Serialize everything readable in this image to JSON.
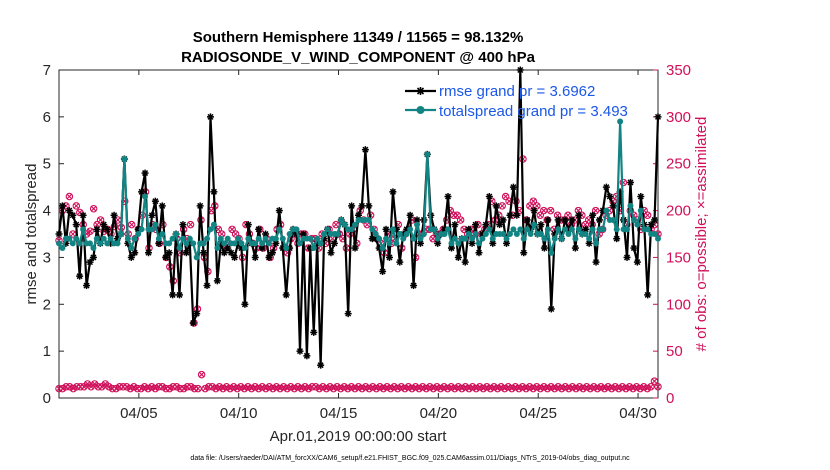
{
  "chart_data": {
    "type": "line",
    "title": "Southern Hemisphere 11349 / 11565 = 98.132%",
    "subtitle": "RADIOSONDE_V_WIND_COMPONENT @ 400 hPa",
    "xlabel": "Apr.01,2019 00:00:00 start",
    "ylabel": "rmse and totalspread",
    "ylabel_right": "# of obs: o=possible; ×=assimilated",
    "xlim": [
      1.0,
      31.0
    ],
    "ylim": [
      0,
      7
    ],
    "ylim_right": [
      0,
      350
    ],
    "x_ticks": [
      5,
      10,
      15,
      20,
      25,
      30
    ],
    "x_tick_labels": [
      "04/05",
      "04/10",
      "04/15",
      "04/20",
      "04/25",
      "04/30"
    ],
    "y_ticks": [
      0,
      1,
      2,
      3,
      4,
      5,
      6,
      7
    ],
    "y_ticks_right": [
      0,
      50,
      100,
      150,
      200,
      250,
      300,
      350
    ],
    "footnote": "data file: /Users/raeder/DAI/ATM_forcXX/CAM6_setup/f.e21.FHIST_BGC.f09_025.CAM6assim.011/Diags_NTrS_2019-04/obs_diag_output.nc",
    "colors": {
      "rmse": "#000000",
      "spread": "#138484",
      "obs": "#d0105a",
      "legend_text": "#1b57e8"
    },
    "series": [
      {
        "name": "rmse grand pr = 3.6962",
        "axis": "left",
        "values": [
          3.5,
          4.1,
          3.3,
          4.0,
          3.9,
          3.7,
          2.6,
          3.9,
          2.4,
          2.9,
          3.0,
          3.6,
          3.3,
          3.7,
          3.6,
          3.3,
          3.9,
          3.4,
          3.5,
          5.1,
          3.3,
          3.0,
          3.1,
          3.6,
          4.4,
          4.8,
          3.1,
          3.9,
          4.2,
          3.3,
          4.1,
          3.0,
          3.1,
          2.2,
          3.5,
          2.2,
          3.7,
          3.1,
          3.3,
          1.6,
          1.8,
          4.1,
          3.1,
          2.4,
          6.0,
          4.4,
          2.5,
          3.3,
          3.1,
          3.2,
          3.1,
          3.0,
          3.3,
          3.2,
          2.0,
          3.7,
          3.3,
          3.0,
          3.6,
          3.2,
          3.5,
          3.0,
          3.1,
          3.3,
          4.0,
          3.2,
          2.2,
          3.2,
          3.6,
          3.5,
          1.0,
          3.5,
          0.9,
          3.2,
          1.4,
          3.3,
          0.7,
          3.4,
          3.6,
          3.1,
          3.3,
          3.5,
          3.8,
          3.7,
          1.8,
          4.1,
          3.2,
          3.9,
          4.1,
          5.3,
          4.1,
          3.4,
          3.4,
          3.2,
          2.7,
          3.6,
          3.0,
          4.4,
          3.6,
          2.9,
          3.5,
          3.6,
          3.9,
          2.4,
          3.8,
          3.3,
          3.8,
          5.2,
          3.9,
          3.6,
          3.3,
          3.5,
          3.6,
          4.3,
          3.2,
          3.7,
          3.0,
          3.4,
          2.9,
          3.6,
          3.3,
          3.7,
          3.1,
          3.5,
          3.7,
          4.3,
          3.3,
          4.1,
          3.7,
          3.8,
          3.3,
          3.9,
          4.5,
          3.9,
          7.0,
          3.1,
          3.8,
          3.6,
          4.0,
          3.5,
          3.7,
          3.2,
          3.8,
          1.9,
          3.5,
          3.8,
          3.4,
          3.8,
          3.6,
          3.8,
          3.2,
          3.9,
          3.5,
          3.6,
          3.3,
          3.9,
          2.9,
          3.8,
          4.0,
          4.5,
          4.3,
          4.1,
          3.4,
          4.4,
          3.8,
          3.0,
          4.6,
          3.2,
          2.9,
          4.3,
          3.7,
          2.2,
          3.7,
          3.8,
          6.0
        ]
      },
      {
        "name": "totalspread grand pr = 3.493",
        "axis": "left",
        "values": [
          3.3,
          3.2,
          3.4,
          3.4,
          3.3,
          3.4,
          3.3,
          3.6,
          3.3,
          3.3,
          3.2,
          3.4,
          3.3,
          3.4,
          3.3,
          3.4,
          3.3,
          3.3,
          3.5,
          5.1,
          3.4,
          3.2,
          3.4,
          3.5,
          3.6,
          4.3,
          3.6,
          3.6,
          3.7,
          3.4,
          3.5,
          3.3,
          3.3,
          3.4,
          3.5,
          3.2,
          3.4,
          3.3,
          3.4,
          3.3,
          3.0,
          3.3,
          3.3,
          3.4,
          3.6,
          3.7,
          3.2,
          3.4,
          3.3,
          3.4,
          3.3,
          3.3,
          3.4,
          3.3,
          3.2,
          3.4,
          3.3,
          3.3,
          3.4,
          3.3,
          3.4,
          3.3,
          3.4,
          3.4,
          3.6,
          3.4,
          3.2,
          3.5,
          3.6,
          3.6,
          3.3,
          3.4,
          3.4,
          3.4,
          3.2,
          3.4,
          3.3,
          3.5,
          3.6,
          3.5,
          3.5,
          3.5,
          3.8,
          3.7,
          3.6,
          3.6,
          3.7,
          3.8,
          3.8,
          3.8,
          3.8,
          3.6,
          3.5,
          3.4,
          3.2,
          3.4,
          3.3,
          3.6,
          3.3,
          3.5,
          3.4,
          3.5,
          3.6,
          3.4,
          3.7,
          3.4,
          3.5,
          5.2,
          3.6,
          3.6,
          3.4,
          3.5,
          3.5,
          3.6,
          3.3,
          3.4,
          3.3,
          3.4,
          3.4,
          3.5,
          3.4,
          3.5,
          3.3,
          3.4,
          3.5,
          3.6,
          3.4,
          3.5,
          3.5,
          3.5,
          3.4,
          3.5,
          3.6,
          3.5,
          3.6,
          3.4,
          3.6,
          3.5,
          3.7,
          3.5,
          3.5,
          3.4,
          3.6,
          3.1,
          3.4,
          3.6,
          3.4,
          3.6,
          3.5,
          3.6,
          3.4,
          3.6,
          3.5,
          3.5,
          3.4,
          3.6,
          3.3,
          3.6,
          3.6,
          4.0,
          3.8,
          3.8,
          3.6,
          5.9,
          3.6,
          3.6,
          4.1,
          3.8,
          3.7,
          4.0,
          3.6,
          3.6,
          3.5,
          3.5,
          3.4
        ]
      },
      {
        "name": "obs possible",
        "axis": "right",
        "values": [
          10,
          10,
          12,
          12,
          10,
          12,
          12,
          12,
          15,
          12,
          15,
          12,
          12,
          15,
          12,
          10,
          10,
          12,
          12,
          12,
          10,
          12,
          10,
          10,
          12,
          10,
          12,
          10,
          12,
          12,
          10,
          10,
          12,
          12,
          10,
          10,
          12,
          12,
          10,
          10,
          25,
          10,
          12,
          12,
          10,
          12,
          10,
          12,
          10,
          12,
          10,
          12,
          10,
          12,
          10,
          12,
          10,
          12,
          10,
          12,
          10,
          12,
          10,
          12,
          10,
          12,
          10,
          12,
          10,
          12,
          10,
          12,
          12,
          10,
          12,
          10,
          12,
          10,
          12,
          10,
          12,
          10,
          12,
          10,
          12,
          10,
          12,
          10,
          12,
          10,
          12,
          10,
          12,
          10,
          12,
          10,
          12,
          10,
          12,
          10,
          12,
          10,
          12,
          10,
          12,
          10,
          12,
          10,
          12,
          10,
          12,
          10,
          12,
          10,
          12,
          10,
          12,
          10,
          12,
          10,
          12,
          10,
          12,
          10,
          12,
          10,
          12,
          10,
          12,
          10,
          12,
          10,
          12,
          10,
          12,
          10,
          12,
          10,
          12,
          10,
          12,
          10,
          12,
          10,
          12,
          10,
          12,
          10,
          12,
          10,
          12,
          10,
          12,
          10,
          12,
          10,
          12,
          10,
          12,
          10,
          12,
          10,
          12,
          10,
          12,
          10,
          12,
          18,
          12
        ]
      },
      {
        "name": "obs assimilated",
        "axis": "right",
        "values": [
          10,
          10,
          12,
          12,
          10,
          12,
          12,
          12,
          15,
          12,
          15,
          12,
          12,
          15,
          12,
          10,
          10,
          12,
          12,
          12,
          10,
          12,
          10,
          10,
          12,
          10,
          12,
          10,
          12,
          12,
          10,
          10,
          12,
          12,
          10,
          10,
          12,
          12,
          10,
          10,
          25,
          10,
          12,
          12,
          10,
          12,
          10,
          12,
          10,
          12,
          10,
          12,
          10,
          12,
          10,
          12,
          10,
          12,
          10,
          12,
          10,
          12,
          10,
          12,
          10,
          12,
          10,
          12,
          10,
          12,
          10,
          12,
          12,
          10,
          12,
          10,
          12,
          10,
          12,
          10,
          12,
          10,
          12,
          10,
          12,
          10,
          12,
          10,
          12,
          10,
          12,
          10,
          12,
          10,
          12,
          10,
          12,
          10,
          12,
          10,
          12,
          10,
          12,
          10,
          12,
          10,
          12,
          10,
          12,
          10,
          12,
          10,
          12,
          10,
          12,
          10,
          12,
          10,
          12,
          10,
          12,
          10,
          12,
          10,
          12,
          10,
          12,
          10,
          12,
          10,
          12,
          10,
          12,
          10,
          12,
          10,
          12,
          10,
          12,
          10,
          12,
          10,
          12,
          10,
          12,
          10,
          12,
          10,
          12,
          10,
          12,
          10,
          12,
          10,
          12,
          10,
          12,
          10,
          12,
          10,
          12,
          10,
          12,
          10,
          12,
          10,
          12,
          18,
          12
        ]
      },
      {
        "name": "obs possible (mid)",
        "axis": "right",
        "values": [
          168,
          200,
          205,
          215,
          175,
          205,
          198,
          185,
          175,
          178,
          202,
          185,
          190,
          178,
          180,
          175,
          183,
          190,
          182,
          210,
          175,
          185,
          170,
          180,
          195,
          220,
          160,
          185,
          180,
          165,
          185,
          150,
          140,
          125,
          170,
          155,
          180,
          170,
          185,
          80,
          95,
          190,
          150,
          135,
          200,
          205,
          180,
          175,
          160,
          165,
          180,
          175,
          170,
          150,
          185,
          175,
          165,
          160,
          180,
          160,
          170,
          150,
          160,
          180,
          185,
          160,
          155,
          170,
          175,
          165,
          175,
          175,
          160,
          170,
          170,
          160,
          175,
          165,
          180,
          170,
          185,
          175,
          170,
          160,
          175,
          180,
          165,
          200,
          190,
          185,
          195,
          180,
          170,
          165,
          155,
          175,
          165,
          170,
          185,
          160,
          175,
          180,
          190,
          150,
          175,
          175,
          180,
          180,
          170,
          175,
          175,
          180,
          190,
          200,
          195,
          195,
          190,
          180,
          175,
          180,
          175,
          185,
          175,
          180,
          185,
          210,
          190,
          195,
          205,
          215,
          210,
          195,
          210,
          200,
          255,
          190,
          205,
          210,
          205,
          195,
          200,
          190,
          200,
          180,
          195,
          190,
          190,
          195,
          185,
          190,
          200,
          195,
          185,
          190,
          185,
          200,
          175,
          180,
          195,
          200,
          210,
          215,
          200,
          230,
          185,
          200,
          195,
          190,
          180,
          200,
          195,
          180,
          185,
          175
        ]
      },
      {
        "name": "obs assimilated (mid)",
        "axis": "right",
        "values": [
          168,
          200,
          205,
          215,
          175,
          205,
          198,
          185,
          175,
          178,
          202,
          185,
          190,
          178,
          180,
          175,
          183,
          190,
          182,
          210,
          175,
          185,
          170,
          180,
          195,
          220,
          160,
          185,
          180,
          165,
          185,
          150,
          140,
          125,
          170,
          155,
          180,
          170,
          185,
          80,
          95,
          190,
          150,
          135,
          200,
          205,
          180,
          175,
          160,
          165,
          180,
          175,
          170,
          150,
          185,
          175,
          165,
          160,
          180,
          160,
          170,
          150,
          160,
          180,
          185,
          160,
          155,
          170,
          175,
          165,
          175,
          175,
          160,
          170,
          170,
          160,
          175,
          165,
          180,
          170,
          185,
          175,
          170,
          160,
          175,
          180,
          165,
          200,
          190,
          185,
          195,
          180,
          170,
          165,
          155,
          175,
          165,
          170,
          185,
          160,
          175,
          180,
          190,
          150,
          175,
          175,
          180,
          180,
          170,
          175,
          175,
          180,
          190,
          200,
          195,
          195,
          190,
          180,
          175,
          180,
          175,
          185,
          175,
          180,
          185,
          210,
          190,
          195,
          205,
          215,
          210,
          195,
          210,
          200,
          255,
          190,
          205,
          210,
          205,
          195,
          200,
          190,
          200,
          180,
          195,
          190,
          190,
          195,
          185,
          190,
          200,
          195,
          185,
          190,
          185,
          200,
          175,
          180,
          195,
          200,
          210,
          215,
          200,
          230,
          185,
          200,
          195,
          190,
          180,
          200,
          195,
          180,
          185,
          175
        ]
      }
    ]
  }
}
